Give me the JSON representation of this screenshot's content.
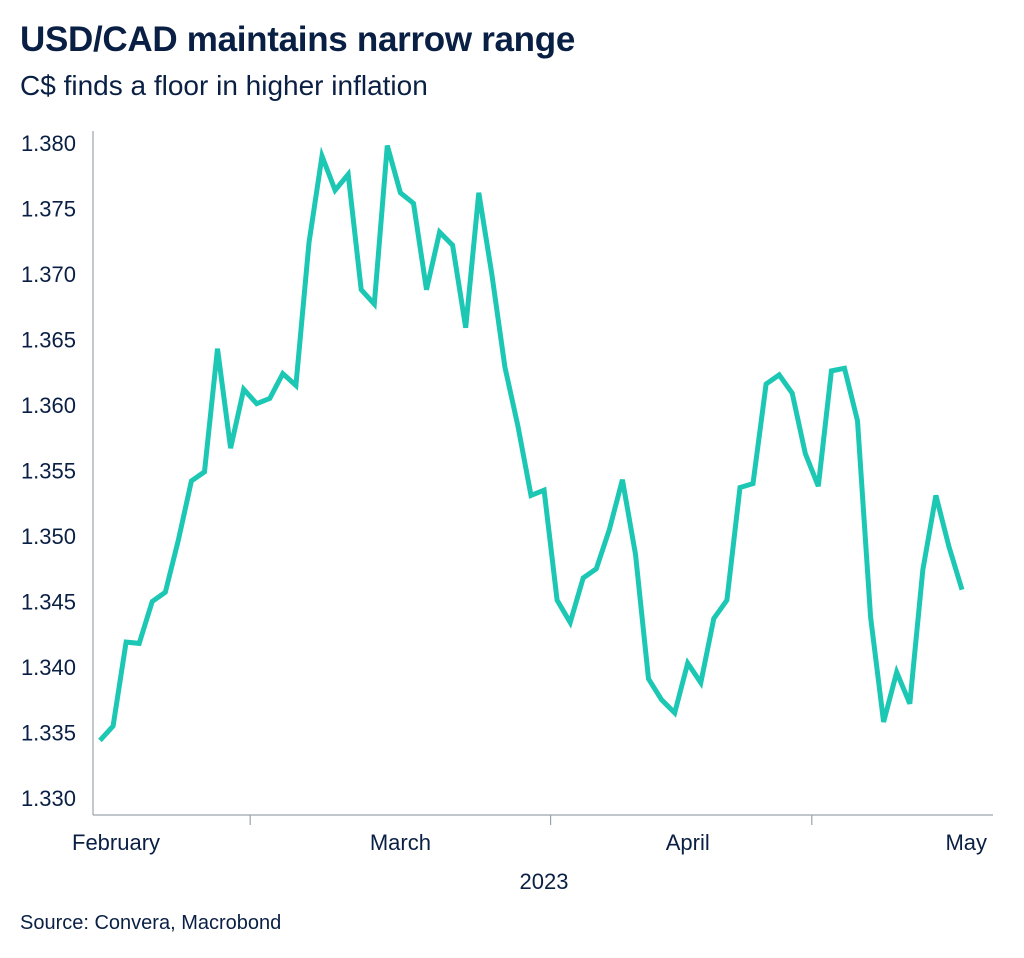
{
  "header": {
    "title": "USD/CAD maintains narrow range",
    "subtitle": "C$ finds a floor in higher inflation"
  },
  "footer": {
    "source": "Source: Convera, Macrobond"
  },
  "colors": {
    "line": "#1cc8b4",
    "text": "#0a1f44",
    "axis": "#9aa3ad"
  },
  "chart_data": {
    "type": "line",
    "title": "USD/CAD maintains narrow range",
    "subtitle": "C$ finds a floor in higher inflation",
    "xlabel": "2023",
    "ylabel": "",
    "ylim": [
      1.33,
      1.38
    ],
    "yticks": [
      "1.330",
      "1.335",
      "1.340",
      "1.345",
      "1.350",
      "1.355",
      "1.360",
      "1.365",
      "1.370",
      "1.375",
      "1.380"
    ],
    "ytick_values": [
      1.33,
      1.335,
      1.34,
      1.345,
      1.35,
      1.355,
      1.36,
      1.365,
      1.37,
      1.375,
      1.38
    ],
    "xlim_index": [
      0,
      67
    ],
    "month_labels": [
      {
        "label": "February",
        "index": 0
      },
      {
        "label": "March",
        "index": 23
      },
      {
        "label": "April",
        "index": 45
      },
      {
        "label": "May",
        "index": 66
      }
    ],
    "month_boundary_index": [
      11.5,
      34.5,
      54.5
    ],
    "grid": false,
    "series": [
      {
        "name": "USD/CAD",
        "values": [
          1.3344,
          1.3355,
          1.3419,
          1.3418,
          1.345,
          1.3457,
          1.3497,
          1.3542,
          1.3549,
          1.3643,
          1.3567,
          1.3612,
          1.3601,
          1.3605,
          1.3624,
          1.3615,
          1.3724,
          1.379,
          1.3764,
          1.3776,
          1.3688,
          1.3677,
          1.3798,
          1.3762,
          1.3754,
          1.3688,
          1.3732,
          1.3722,
          1.3659,
          1.3762,
          1.37,
          1.3629,
          1.3584,
          1.3531,
          1.3535,
          1.3451,
          1.3434,
          1.3468,
          1.3475,
          1.3505,
          1.3543,
          1.3486,
          1.3391,
          1.3375,
          1.3365,
          1.3403,
          1.3388,
          1.3437,
          1.3451,
          1.3537,
          1.354,
          1.3616,
          1.3623,
          1.3609,
          1.3563,
          1.3538,
          1.3626,
          1.3628,
          1.3588,
          1.3438,
          1.3358,
          1.3396,
          1.3372,
          1.3474,
          1.3531,
          1.3492,
          1.3459
        ]
      }
    ]
  }
}
